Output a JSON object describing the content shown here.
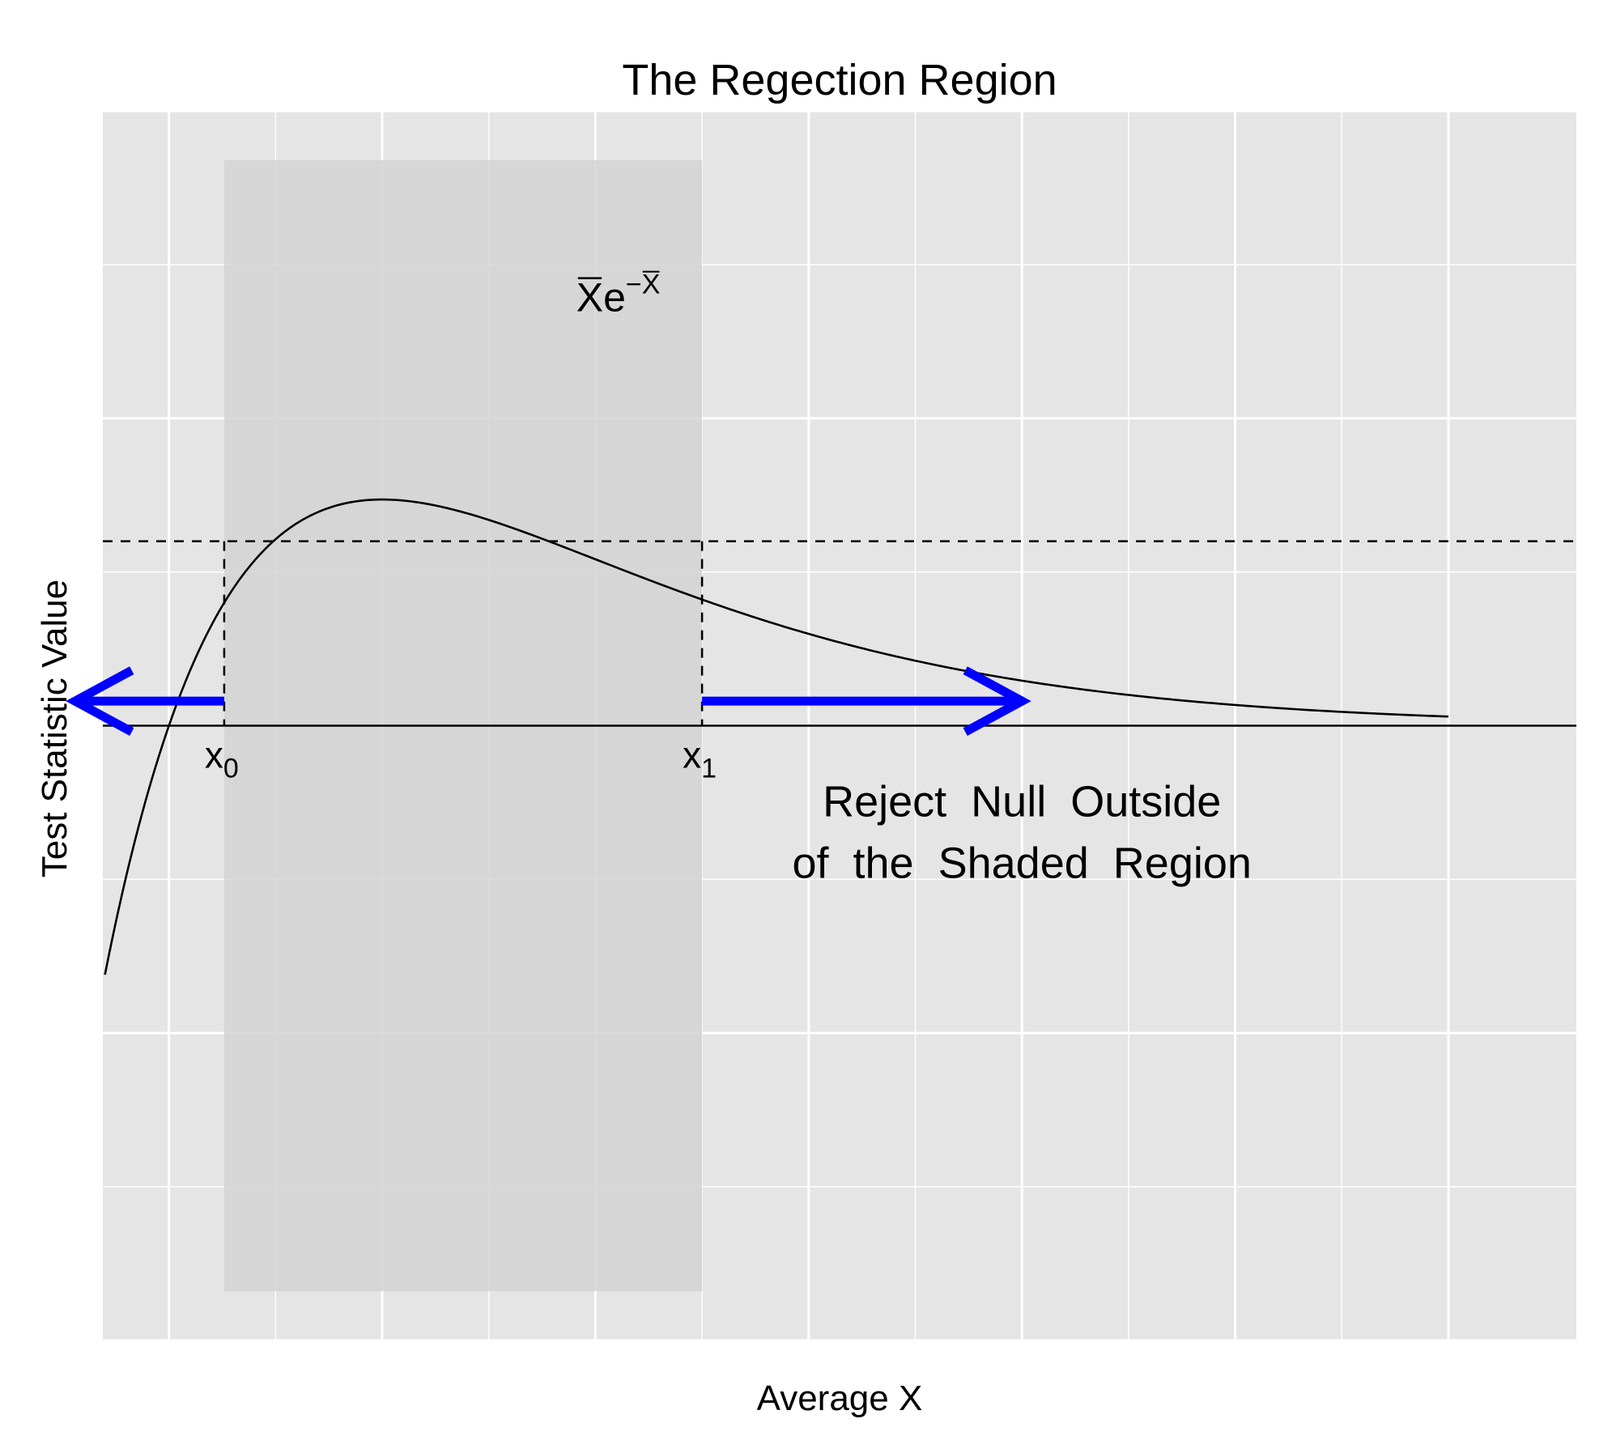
{
  "colors": {
    "panel": "#e5e5e5",
    "grid": "#ffffff",
    "shade": "#d3d3d3",
    "curve": "#000000",
    "arrow": "#0000ff"
  },
  "chart_data": {
    "type": "line",
    "title": "The Regection Region",
    "xlabel": "Average X",
    "ylabel": "Test Statistic Value",
    "xlim": [
      -0.31,
      6.6
    ],
    "ylim": [
      -1.0,
      1.0
    ],
    "grid": true,
    "axis_ticks_labeled": false,
    "function": "x*exp(-x)",
    "function_domain": [
      -0.3,
      6.0
    ],
    "function_label": {
      "base": "X",
      "exp_minus": "e",
      "sup_sign": "−",
      "sup_var": "X",
      "x": 2.1,
      "y": 0.72
    },
    "threshold": 0.3,
    "x0": 0.2592,
    "x1": 2.5,
    "shaded_region": {
      "x": [
        0.2592,
        2.5
      ],
      "y": [
        -0.92,
        0.92
      ]
    },
    "x0_label": {
      "main": "x",
      "sub": "0"
    },
    "x1_label": {
      "main": "x",
      "sub": "1"
    },
    "annotation_lines": [
      "Reject  Null  Outside",
      "of  the  Shaded  Region"
    ],
    "annotation_anchor": {
      "x": 4.0,
      "y": -0.2
    },
    "arrows": [
      {
        "from": 0.2592,
        "to": -0.44,
        "y": 0.04
      },
      {
        "from": 2.5,
        "to": 4.0,
        "y": 0.04
      }
    ]
  }
}
